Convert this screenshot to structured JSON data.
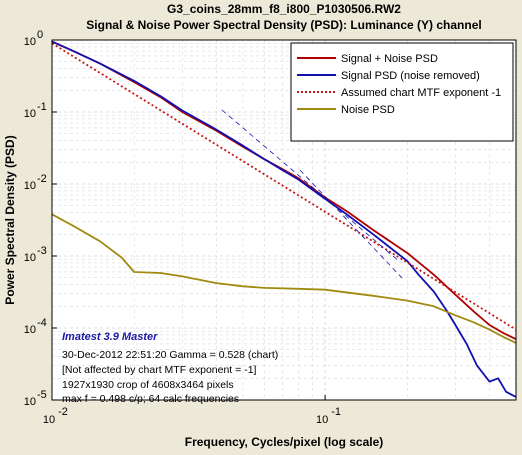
{
  "chart_data": {
    "type": "line",
    "title": "G3_coins_28mm_f8_i800_P1030506.RW2",
    "subtitle": "Signal & Noise Power Spectral Density (PSD):  Luminance (Y) channel",
    "xlabel": "Frequency, Cycles/pixel (log scale)",
    "ylabel": "Power Spectral Density (PSD)",
    "xscale": "log",
    "yscale": "log",
    "xlim": [
      0.01,
      0.5
    ],
    "ylim": [
      1e-05,
      1
    ],
    "grid": true,
    "legend_position": "top-right",
    "x_tick_labels": [
      {
        "value": 0.01,
        "base": "10",
        "exp": "-2"
      },
      {
        "value": 0.1,
        "base": "10",
        "exp": "-1"
      }
    ],
    "y_tick_labels": [
      {
        "value": 1,
        "base": "10",
        "exp": "0"
      },
      {
        "value": 0.1,
        "base": "10",
        "exp": "-1"
      },
      {
        "value": 0.01,
        "base": "10",
        "exp": "-2"
      },
      {
        "value": 0.001,
        "base": "10",
        "exp": "-3"
      },
      {
        "value": 0.0001,
        "base": "10",
        "exp": "-4"
      },
      {
        "value": 1e-05,
        "base": "10",
        "exp": "-5"
      }
    ],
    "series": [
      {
        "name": "Signal + Noise PSD",
        "color": "#b00000",
        "style": "solid",
        "x": [
          0.01,
          0.012,
          0.015,
          0.02,
          0.025,
          0.03,
          0.04,
          0.05,
          0.06,
          0.07,
          0.08,
          0.1,
          0.12,
          0.15,
          0.2,
          0.25,
          0.3,
          0.35,
          0.4,
          0.45,
          0.5
        ],
        "y": [
          0.95,
          0.7,
          0.47,
          0.26,
          0.16,
          0.1,
          0.055,
          0.033,
          0.022,
          0.016,
          0.012,
          0.0065,
          0.0042,
          0.0023,
          0.0011,
          0.00055,
          0.00029,
          0.00017,
          0.00011,
          8.5e-05,
          7e-05
        ]
      },
      {
        "name": "Signal PSD (noise removed)",
        "color": "#1010b0",
        "style": "solid",
        "x": [
          0.01,
          0.012,
          0.015,
          0.02,
          0.025,
          0.03,
          0.04,
          0.05,
          0.06,
          0.07,
          0.08,
          0.1,
          0.12,
          0.15,
          0.2,
          0.22,
          0.25,
          0.28,
          0.3,
          0.33,
          0.36,
          0.4,
          0.43,
          0.46,
          0.5
        ],
        "y": [
          0.95,
          0.7,
          0.47,
          0.27,
          0.165,
          0.105,
          0.057,
          0.034,
          0.022,
          0.0155,
          0.0115,
          0.0062,
          0.0038,
          0.002,
          0.00085,
          0.00055,
          0.00032,
          0.00017,
          0.00011,
          6e-05,
          3e-05,
          1.8e-05,
          2e-05,
          1.3e-05,
          1.1e-05
        ]
      },
      {
        "name": "Assumed chart MTF exponent  -1",
        "color": "#c81414",
        "style": "dotted",
        "x": [
          0.01,
          0.5
        ],
        "y": [
          0.9,
          9.5e-05
        ]
      },
      {
        "name": "Noise PSD",
        "color": "#a08a10",
        "style": "solid",
        "x": [
          0.01,
          0.012,
          0.015,
          0.018,
          0.02,
          0.025,
          0.03,
          0.04,
          0.05,
          0.06,
          0.08,
          0.1,
          0.15,
          0.2,
          0.25,
          0.3,
          0.35,
          0.4,
          0.45,
          0.5
        ],
        "y": [
          0.0038,
          0.0026,
          0.0016,
          0.00095,
          0.0006,
          0.00058,
          0.00052,
          0.00042,
          0.00038,
          0.00036,
          0.00035,
          0.00034,
          0.00028,
          0.00024,
          0.0002,
          0.00015,
          0.00012,
          9.5e-05,
          7.5e-05,
          6.2e-05
        ]
      }
    ],
    "annotations": {
      "heading": "Imatest 3.9 Master",
      "lines": [
        "30-Dec-2012 22:51:20    Gamma = 0.528 (chart)",
        "[Not affected by chart MTF exponent = -1]",
        "1927x1930 crop of 4608x3464 pixels",
        "max f = 0.498 c/p;  64 calc frequencies"
      ]
    }
  }
}
